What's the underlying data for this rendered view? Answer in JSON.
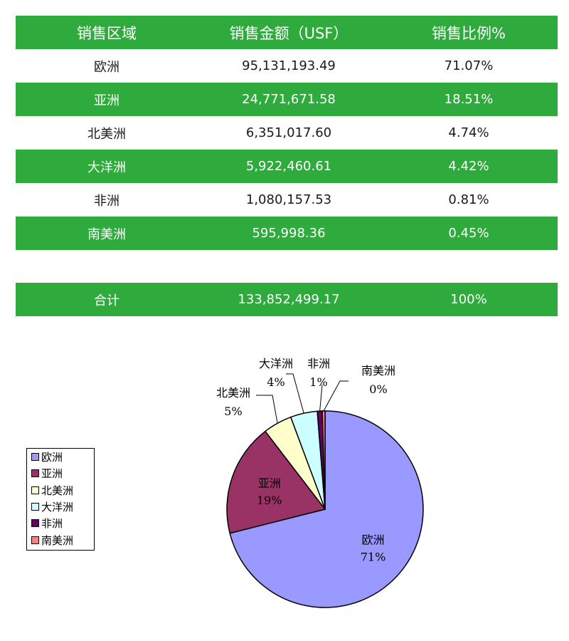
{
  "table": {
    "headers": [
      "销售区域",
      "销售金额（USF）",
      "销售比例%"
    ],
    "rows": [
      {
        "region": "欧洲",
        "amount": "95,131,193.49",
        "ratio": "71.07%"
      },
      {
        "region": "亚洲",
        "amount": "24,771,671.58",
        "ratio": "18.51%"
      },
      {
        "region": "北美洲",
        "amount": "6,351,017.60",
        "ratio": "4.74%"
      },
      {
        "region": "大洋洲",
        "amount": "5,922,460.61",
        "ratio": "4.42%"
      },
      {
        "region": "非洲",
        "amount": "1,080,157.53",
        "ratio": "0.81%"
      },
      {
        "region": "南美洲",
        "amount": "595,998.36",
        "ratio": "0.45%"
      }
    ],
    "total": {
      "label": "合计",
      "amount": "133,852,499.17",
      "ratio": "100%"
    }
  },
  "colors": {
    "row_green": "#2eab3c",
    "row_text_on_green": "#ffffff",
    "row_text_on_white": "#1a1a1a"
  },
  "chart_data": {
    "type": "pie",
    "categories": [
      "欧洲",
      "亚洲",
      "北美洲",
      "大洋洲",
      "非洲",
      "南美洲"
    ],
    "values": [
      71.07,
      18.51,
      4.74,
      4.42,
      0.81,
      0.45
    ],
    "data_labels": [
      "71%",
      "19%",
      "5%",
      "4%",
      "1%",
      "0%"
    ],
    "colors": [
      "#9999ff",
      "#993366",
      "#ffffcc",
      "#ccffff",
      "#660066",
      "#ff8080"
    ],
    "legend": {
      "position": "left",
      "entries": [
        "欧洲",
        "亚洲",
        "北美洲",
        "大洋洲",
        "非洲",
        "南美洲"
      ]
    },
    "title": ""
  }
}
